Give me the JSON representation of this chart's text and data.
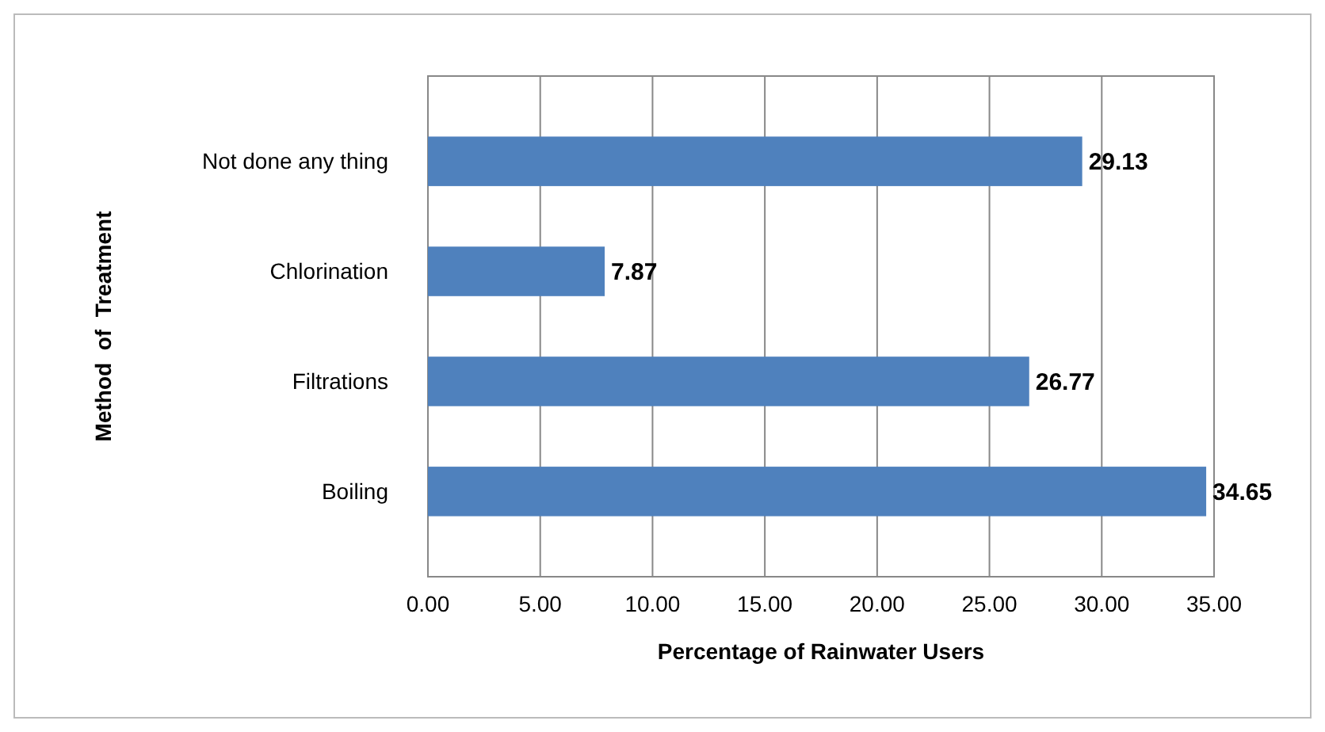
{
  "chart_data": {
    "type": "bar",
    "orientation": "horizontal",
    "xlabel": "Percentage of Rainwater Users",
    "ylabel": "Method  of  Treatment",
    "categories": [
      "Not done any thing",
      "Chlorination",
      "Filtrations",
      "Boiling"
    ],
    "values": [
      29.13,
      7.87,
      26.77,
      34.65
    ],
    "color": "#4f81bd",
    "data_labels": true,
    "xlim": [
      0,
      35
    ],
    "xticks": [
      {
        "value": 0,
        "label": "0.00"
      },
      {
        "value": 5,
        "label": "5.00"
      },
      {
        "value": 10,
        "label": "10.00"
      },
      {
        "value": 15,
        "label": "15.00"
      },
      {
        "value": 20,
        "label": "20.00"
      },
      {
        "value": 25,
        "label": "25.00"
      },
      {
        "value": 30,
        "label": "30.00"
      },
      {
        "value": 35,
        "label": "35.00"
      }
    ],
    "grid": "x"
  }
}
